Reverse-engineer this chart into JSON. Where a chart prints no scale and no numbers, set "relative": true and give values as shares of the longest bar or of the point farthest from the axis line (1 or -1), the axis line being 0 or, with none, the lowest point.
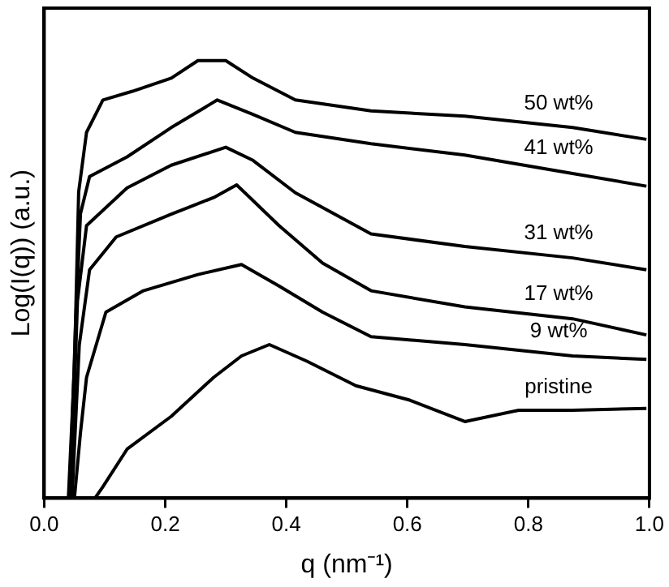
{
  "chart_data": {
    "type": "line",
    "relative": true,
    "xlabel": "q (nm⁻¹)",
    "ylabel": "Log(I(q)) (a.u.)",
    "xlim": [
      0,
      1.0
    ],
    "xticks": [
      {
        "value": 0,
        "label": "0.0"
      },
      0.2,
      0.4,
      0.6,
      0.8,
      {
        "value": 1,
        "label": "1.0"
      }
    ],
    "tick_labels": "x",
    "grid": false,
    "legend": false,
    "marker": "none",
    "line_style": "solid",
    "series": [
      {
        "name": "50 wt%",
        "color": "#000000",
        "x": [
          0.04,
          0.05,
          0.057,
          0.07,
          0.097,
          0.146,
          0.21,
          0.254,
          0.3,
          0.345,
          0.415,
          0.54,
          0.695,
          0.873,
          0.995
        ],
        "values": [
          0,
          0.3,
          0.7,
          0.836,
          0.91,
          0.93,
          0.96,
          1.0,
          1.0,
          0.96,
          0.91,
          0.885,
          0.873,
          0.847,
          0.82
        ]
      },
      {
        "name": "41 wt%",
        "color": "#000000",
        "x": [
          0.042,
          0.052,
          0.06,
          0.075,
          0.137,
          0.21,
          0.286,
          0.345,
          0.415,
          0.54,
          0.695,
          0.873,
          0.995
        ],
        "values": [
          0,
          0.4,
          0.65,
          0.735,
          0.78,
          0.847,
          0.91,
          0.877,
          0.836,
          0.81,
          0.784,
          0.742,
          0.713
        ]
      },
      {
        "name": "31 wt%",
        "color": "#000000",
        "x": [
          0.044,
          0.055,
          0.07,
          0.137,
          0.21,
          0.3,
          0.345,
          0.415,
          0.54,
          0.695,
          0.873,
          0.995
        ],
        "values": [
          0,
          0.45,
          0.623,
          0.709,
          0.761,
          0.802,
          0.772,
          0.698,
          0.604,
          0.575,
          0.549,
          0.522
        ]
      },
      {
        "name": "17 wt%",
        "color": "#000000",
        "x": [
          0.046,
          0.058,
          0.075,
          0.119,
          0.21,
          0.28,
          0.318,
          0.388,
          0.46,
          0.54,
          0.695,
          0.873,
          0.995
        ],
        "values": [
          0,
          0.35,
          0.522,
          0.597,
          0.649,
          0.687,
          0.716,
          0.623,
          0.537,
          0.474,
          0.437,
          0.41,
          0.373
        ]
      },
      {
        "name": "9 wt%",
        "color": "#000000",
        "x": [
          0.05,
          0.06,
          0.07,
          0.102,
          0.164,
          0.254,
          0.326,
          0.388,
          0.46,
          0.54,
          0.695,
          0.873,
          0.995
        ],
        "values": [
          0,
          0.15,
          0.276,
          0.425,
          0.474,
          0.511,
          0.534,
          0.485,
          0.425,
          0.369,
          0.351,
          0.325,
          0.317
        ]
      },
      {
        "name": "pristine",
        "color": "#000000",
        "x": [
          0.084,
          0.097,
          0.137,
          0.21,
          0.28,
          0.326,
          0.372,
          0.434,
          0.515,
          0.604,
          0.695,
          0.784,
          0.873,
          0.995
        ],
        "values": [
          0,
          0.026,
          0.112,
          0.187,
          0.276,
          0.325,
          0.351,
          0.313,
          0.257,
          0.224,
          0.175,
          0.201,
          0.201,
          0.205
        ]
      }
    ]
  }
}
